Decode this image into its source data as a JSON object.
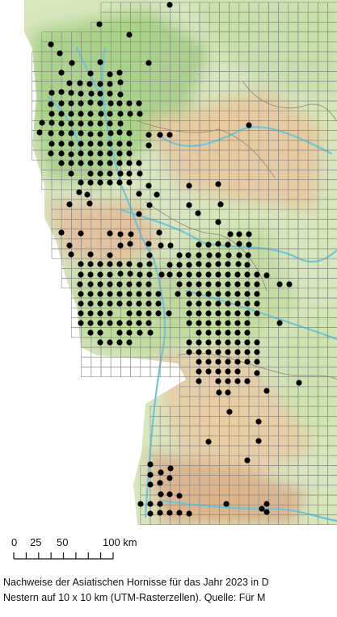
{
  "map": {
    "scale_bar": {
      "labels": [
        "0",
        "25",
        "50",
        "100 km"
      ],
      "label_values": [
        0,
        25,
        50,
        100
      ],
      "max_km": 100,
      "tick_step_km": 12.5
    },
    "grid": {
      "cell_size_label": "10 x 10 km"
    },
    "colors": {
      "lowland": "#b9d89a",
      "upland": "#e8cfa3",
      "highland": "#dfb690",
      "river": "#6cc7d9",
      "grid": "#8a8a8a",
      "occupied_cell": "#000000"
    }
  },
  "caption": {
    "line1": "Nachweise der Asiatischen Hornisse für das Jahr 2023 in D",
    "line2": "Nestern auf 10 x 10 km (UTM-Rasterzellen). Quelle: Für M"
  }
}
